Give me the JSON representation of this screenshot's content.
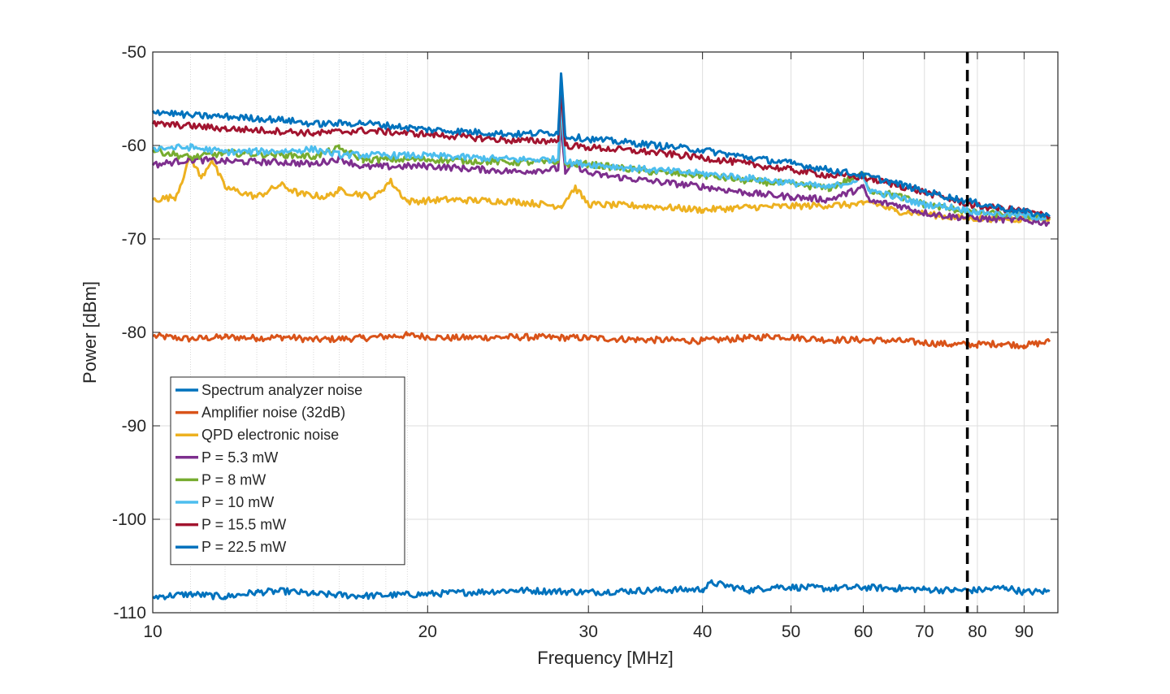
{
  "chart_data": {
    "type": "line",
    "title": "",
    "xlabel": "Frequency [MHz]",
    "ylabel": "Power [dBm]",
    "xscale": "log",
    "xlim": [
      10,
      98
    ],
    "ylim": [
      -110,
      -50
    ],
    "xticks": [
      10,
      20,
      30,
      40,
      50,
      60,
      70,
      80,
      90
    ],
    "xtick_labels": [
      "10",
      "20",
      "30",
      "40",
      "50",
      "60",
      "70",
      "80",
      "90"
    ],
    "yticks": [
      -50,
      -60,
      -70,
      -80,
      -90,
      -100,
      -110
    ],
    "ytick_labels": [
      "-50",
      "-60",
      "-70",
      "-80",
      "-90",
      "-100",
      "-110"
    ],
    "grid": true,
    "minor_grid_x": true,
    "legend_position": "bottom-left",
    "vertical_line": {
      "x": 78,
      "style": "dashed",
      "color": "#000000"
    },
    "series": [
      {
        "name": "Spectrum analyzer noise",
        "color": "#0072BD",
        "points": [
          [
            10,
            -108.3
          ],
          [
            11,
            -108.0
          ],
          [
            12,
            -108.3
          ],
          [
            13,
            -107.8
          ],
          [
            14,
            -107.7
          ],
          [
            15,
            -108.0
          ],
          [
            17,
            -108.2
          ],
          [
            20,
            -108.0
          ],
          [
            25,
            -107.6
          ],
          [
            30,
            -107.8
          ],
          [
            35,
            -107.6
          ],
          [
            40,
            -107.5
          ],
          [
            41,
            -106.8
          ],
          [
            45,
            -107.6
          ],
          [
            48,
            -107.2
          ],
          [
            55,
            -107.4
          ],
          [
            60,
            -107.3
          ],
          [
            65,
            -107.4
          ],
          [
            70,
            -107.5
          ],
          [
            75,
            -107.6
          ],
          [
            80,
            -107.6
          ],
          [
            86,
            -107.3
          ],
          [
            90,
            -107.8
          ],
          [
            96,
            -107.7
          ]
        ]
      },
      {
        "name": "Amplifier noise (32dB)",
        "color": "#D95319",
        "points": [
          [
            10,
            -80.4
          ],
          [
            11,
            -80.7
          ],
          [
            12,
            -80.5
          ],
          [
            13,
            -80.6
          ],
          [
            14,
            -80.5
          ],
          [
            15,
            -80.8
          ],
          [
            17,
            -80.6
          ],
          [
            19,
            -80.3
          ],
          [
            21,
            -80.6
          ],
          [
            25,
            -80.5
          ],
          [
            30,
            -80.6
          ],
          [
            35,
            -80.8
          ],
          [
            40,
            -80.9
          ],
          [
            45,
            -80.6
          ],
          [
            48,
            -80.4
          ],
          [
            55,
            -80.8
          ],
          [
            60,
            -80.8
          ],
          [
            65,
            -80.9
          ],
          [
            70,
            -81.1
          ],
          [
            75,
            -81.3
          ],
          [
            80,
            -81.3
          ],
          [
            85,
            -81.2
          ],
          [
            90,
            -81.4
          ],
          [
            96,
            -81.0
          ]
        ]
      },
      {
        "name": "QPD electronic noise",
        "color": "#EDB120",
        "points": [
          [
            10,
            -65.8
          ],
          [
            10.6,
            -65.5
          ],
          [
            11.0,
            -61.2
          ],
          [
            11.3,
            -63.5
          ],
          [
            11.6,
            -61.5
          ],
          [
            12.0,
            -64.5
          ],
          [
            13.0,
            -65.5
          ],
          [
            13.8,
            -64.2
          ],
          [
            14.5,
            -65.2
          ],
          [
            15.5,
            -65.5
          ],
          [
            16.0,
            -64.8
          ],
          [
            17.5,
            -65.5
          ],
          [
            18.2,
            -63.8
          ],
          [
            19.0,
            -66.0
          ],
          [
            21,
            -65.8
          ],
          [
            25,
            -66.0
          ],
          [
            28,
            -66.5
          ],
          [
            29,
            -64.5
          ],
          [
            30,
            -66.3
          ],
          [
            35,
            -66.5
          ],
          [
            40,
            -66.9
          ],
          [
            45,
            -66.6
          ],
          [
            50,
            -66.5
          ],
          [
            55,
            -66.4
          ],
          [
            60,
            -66.3
          ],
          [
            61,
            -66.0
          ],
          [
            65,
            -67.0
          ],
          [
            70,
            -67.3
          ],
          [
            75,
            -67.7
          ],
          [
            80,
            -67.8
          ],
          [
            90,
            -67.9
          ],
          [
            96,
            -67.8
          ]
        ]
      },
      {
        "name": "P = 5.3 mW",
        "color": "#7E2F8E",
        "points": [
          [
            10,
            -62.1
          ],
          [
            11,
            -61.5
          ],
          [
            12,
            -61.7
          ],
          [
            14,
            -61.8
          ],
          [
            15,
            -62.0
          ],
          [
            16,
            -61.4
          ],
          [
            17,
            -62.3
          ],
          [
            20,
            -62.2
          ],
          [
            25,
            -62.8
          ],
          [
            27.8,
            -62.5
          ],
          [
            28,
            -57.5
          ],
          [
            28.3,
            -63.0
          ],
          [
            29,
            -62.0
          ],
          [
            30,
            -63.0
          ],
          [
            35,
            -63.8
          ],
          [
            40,
            -64.4
          ],
          [
            45,
            -65.1
          ],
          [
            50,
            -65.5
          ],
          [
            55,
            -65.8
          ],
          [
            60,
            -64.5
          ],
          [
            61,
            -66.0
          ],
          [
            65,
            -66.3
          ],
          [
            70,
            -67.2
          ],
          [
            75,
            -67.6
          ],
          [
            80,
            -67.8
          ],
          [
            90,
            -68.0
          ],
          [
            96,
            -68.3
          ]
        ]
      },
      {
        "name": "P = 8 mW",
        "color": "#77AC30",
        "points": [
          [
            10,
            -60.5
          ],
          [
            11,
            -61.3
          ],
          [
            12,
            -60.8
          ],
          [
            14,
            -61.0
          ],
          [
            15,
            -61.2
          ],
          [
            16,
            -60.3
          ],
          [
            17,
            -61.5
          ],
          [
            20,
            -61.5
          ],
          [
            25,
            -61.8
          ],
          [
            27.8,
            -61.8
          ],
          [
            28,
            -55.5
          ],
          [
            28.3,
            -62.0
          ],
          [
            30,
            -62.0
          ],
          [
            35,
            -62.8
          ],
          [
            40,
            -63.2
          ],
          [
            45,
            -63.8
          ],
          [
            50,
            -64.1
          ],
          [
            55,
            -64.6
          ],
          [
            60,
            -63.0
          ],
          [
            61,
            -64.8
          ],
          [
            65,
            -65.3
          ],
          [
            70,
            -66.3
          ],
          [
            75,
            -66.8
          ],
          [
            80,
            -67.2
          ],
          [
            90,
            -67.5
          ],
          [
            96,
            -67.7
          ]
        ]
      },
      {
        "name": "P = 10 mW",
        "color": "#4DBEEE",
        "points": [
          [
            10,
            -60.3
          ],
          [
            11,
            -60.2
          ],
          [
            12,
            -60.7
          ],
          [
            14,
            -60.6
          ],
          [
            15,
            -60.4
          ],
          [
            16,
            -61.0
          ],
          [
            20,
            -61.1
          ],
          [
            25,
            -61.5
          ],
          [
            27.8,
            -61.5
          ],
          [
            28,
            -55.0
          ],
          [
            28.3,
            -61.8
          ],
          [
            30,
            -62.0
          ],
          [
            35,
            -62.6
          ],
          [
            40,
            -63.0
          ],
          [
            45,
            -63.5
          ],
          [
            50,
            -64.0
          ],
          [
            55,
            -64.5
          ],
          [
            60,
            -63.5
          ],
          [
            61,
            -64.8
          ],
          [
            65,
            -65.5
          ],
          [
            70,
            -66.3
          ],
          [
            75,
            -66.6
          ],
          [
            80,
            -67.1
          ],
          [
            90,
            -67.5
          ],
          [
            96,
            -67.8
          ]
        ]
      },
      {
        "name": "P = 15.5 mW",
        "color": "#A2142F",
        "points": [
          [
            10,
            -57.7
          ],
          [
            11,
            -57.9
          ],
          [
            12,
            -58.2
          ],
          [
            14,
            -58.5
          ],
          [
            15,
            -58.7
          ],
          [
            17,
            -58.4
          ],
          [
            20,
            -58.8
          ],
          [
            25,
            -59.5
          ],
          [
            27.8,
            -59.5
          ],
          [
            28,
            -54.0
          ],
          [
            28.3,
            -60.0
          ],
          [
            30,
            -60.2
          ],
          [
            35,
            -60.7
          ],
          [
            40,
            -61.3
          ],
          [
            45,
            -62.0
          ],
          [
            50,
            -62.6
          ],
          [
            55,
            -63.2
          ],
          [
            60,
            -63.4
          ],
          [
            65,
            -64.2
          ],
          [
            70,
            -65.0
          ],
          [
            75,
            -65.8
          ],
          [
            80,
            -66.5
          ],
          [
            90,
            -67.0
          ],
          [
            96,
            -67.6
          ]
        ]
      },
      {
        "name": "P = 22.5 mW",
        "color": "#0072BD",
        "points": [
          [
            10,
            -56.3
          ],
          [
            11,
            -56.8
          ],
          [
            12,
            -56.9
          ],
          [
            14,
            -57.3
          ],
          [
            15,
            -57.7
          ],
          [
            17,
            -57.6
          ],
          [
            20,
            -58.3
          ],
          [
            25,
            -58.8
          ],
          [
            27.8,
            -58.6
          ],
          [
            28,
            -52.3
          ],
          [
            28.3,
            -59.0
          ],
          [
            30,
            -59.3
          ],
          [
            35,
            -59.9
          ],
          [
            40,
            -60.5
          ],
          [
            45,
            -61.3
          ],
          [
            50,
            -61.9
          ],
          [
            55,
            -62.6
          ],
          [
            60,
            -63.2
          ],
          [
            65,
            -64.0
          ],
          [
            70,
            -64.9
          ],
          [
            75,
            -65.6
          ],
          [
            80,
            -66.2
          ],
          [
            90,
            -67.1
          ],
          [
            96,
            -67.6
          ]
        ]
      }
    ]
  }
}
